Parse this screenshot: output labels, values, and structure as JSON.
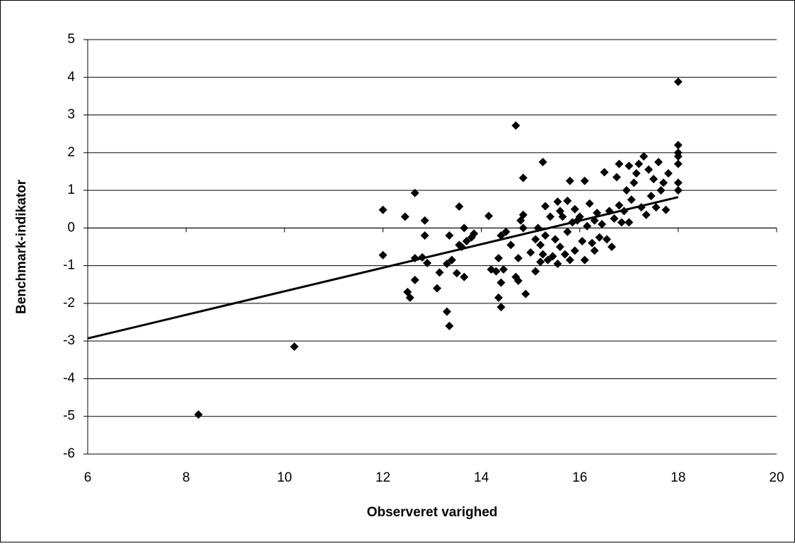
{
  "chart_data": {
    "type": "scatter",
    "x_label": "Observeret varighed",
    "y_label": "Benchmark-indikator",
    "color": "#000000",
    "grid": true,
    "xlim": [
      6,
      20
    ],
    "xticks": [
      6,
      8,
      10,
      12,
      14,
      16,
      18,
      20
    ],
    "ylim": [
      -6,
      5
    ],
    "yticks": [
      -6,
      -5,
      -4,
      -3,
      -2,
      -1,
      0,
      1,
      2,
      3,
      4,
      5
    ],
    "x": [
      8.25,
      10.2,
      18,
      14.7,
      12.0,
      12.0,
      12.45,
      12.65,
      12.5,
      12.55,
      12.65,
      12.65,
      12.8,
      12.85,
      12.85,
      12.9,
      13.1,
      13.15,
      13.3,
      13.35,
      13.3,
      13.35,
      13.4,
      13.5,
      13.55,
      13.55,
      13.6,
      13.65,
      13.65,
      13.7,
      13.8,
      13.85,
      14.15,
      14.2,
      14.3,
      14.35,
      14.35,
      14.4,
      14.4,
      14.4,
      14.45,
      14.5,
      14.6,
      14.7,
      14.75,
      14.75,
      14.8,
      14.85,
      14.85,
      14.85,
      14.9,
      15.0,
      15.1,
      15.1,
      15.15,
      15.2,
      15.2,
      15.25,
      15.25,
      15.3,
      15.3,
      15.35,
      15.4,
      15.45,
      15.5,
      15.55,
      15.55,
      15.6,
      15.6,
      15.65,
      15.7,
      15.75,
      15.75,
      15.8,
      15.8,
      15.85,
      15.9,
      15.9,
      15.95,
      16.0,
      16.05,
      16.1,
      16.1,
      16.15,
      16.2,
      16.25,
      16.3,
      16.3,
      16.35,
      16.4,
      16.45,
      16.5,
      16.55,
      16.6,
      16.65,
      16.7,
      16.75,
      16.8,
      16.8,
      16.85,
      16.9,
      16.95,
      17.0,
      17.0,
      17.05,
      17.1,
      17.15,
      17.2,
      17.25,
      17.3,
      17.35,
      17.4,
      17.45,
      17.5,
      17.55,
      17.6,
      17.65,
      17.7,
      17.75,
      17.8,
      18.0,
      18.0,
      18.0,
      18.0,
      18.0,
      18.0
    ],
    "values": [
      -4.95,
      -3.15,
      3.88,
      2.72,
      0.48,
      -0.72,
      0.3,
      0.93,
      -1.7,
      -1.85,
      -1.38,
      -0.8,
      -0.78,
      0.2,
      -0.2,
      -0.93,
      -1.6,
      -1.18,
      -2.22,
      -2.6,
      -0.95,
      -0.2,
      -0.85,
      -1.2,
      0.57,
      -0.45,
      -0.5,
      0.0,
      -1.3,
      -0.35,
      -0.25,
      -0.15,
      0.32,
      -1.1,
      -1.15,
      -0.8,
      -1.85,
      -2.1,
      -1.45,
      -0.2,
      -1.1,
      -0.1,
      -0.45,
      -1.3,
      -1.4,
      -0.8,
      0.2,
      1.33,
      0.35,
      0.0,
      -1.75,
      -0.65,
      -1.15,
      -0.3,
      0.0,
      -0.9,
      -0.45,
      1.75,
      -0.7,
      0.58,
      -0.2,
      -0.85,
      0.3,
      -0.75,
      -0.3,
      0.7,
      -0.95,
      -0.5,
      0.45,
      0.3,
      -0.7,
      0.72,
      -0.1,
      1.25,
      -0.85,
      0.15,
      0.5,
      -0.6,
      0.2,
      0.3,
      -0.35,
      1.25,
      -0.85,
      0.05,
      0.65,
      -0.4,
      -0.6,
      0.2,
      0.4,
      -0.25,
      0.1,
      1.48,
      -0.3,
      0.45,
      -0.5,
      0.25,
      1.35,
      1.7,
      0.6,
      0.15,
      0.45,
      1.0,
      1.65,
      0.15,
      0.75,
      1.2,
      1.45,
      1.7,
      0.55,
      1.9,
      0.35,
      1.55,
      0.85,
      1.3,
      0.55,
      1.75,
      1.0,
      1.2,
      0.48,
      1.45,
      2.2,
      2.0,
      1.7,
      1.2,
      1.0,
      1.9
    ],
    "trendline": {
      "x": [
        6,
        18
      ],
      "values": [
        -2.93,
        0.82
      ]
    }
  }
}
